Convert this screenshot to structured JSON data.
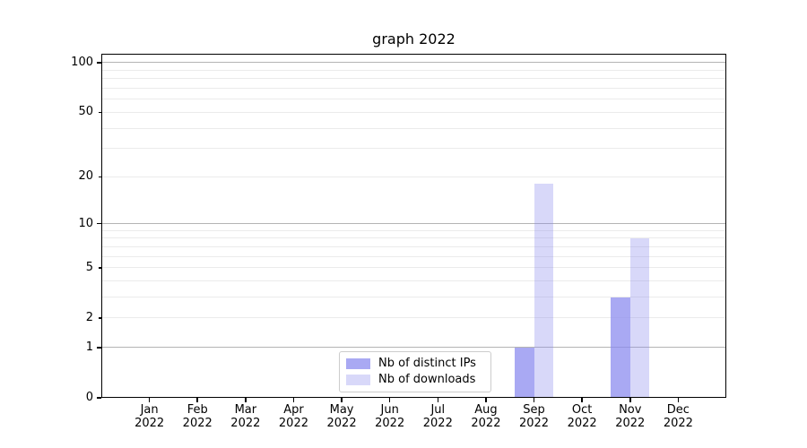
{
  "title": "graph 2022",
  "chart_data": {
    "type": "bar",
    "title": "graph 2022",
    "categories": [
      "Jan 2022",
      "Feb 2022",
      "Mar 2022",
      "Apr 2022",
      "May 2022",
      "Jun 2022",
      "Jul 2022",
      "Aug 2022",
      "Sep 2022",
      "Oct 2022",
      "Nov 2022",
      "Dec 2022"
    ],
    "series": [
      {
        "name": "Nb of distinct IPs",
        "fill": "rgba(136,136,238,0.72)",
        "hex_on_white": "#a9a9f1",
        "values": [
          0,
          0,
          0,
          0,
          0,
          0,
          0,
          0,
          1,
          0,
          3,
          0
        ]
      },
      {
        "name": "Nb of downloads",
        "fill": "rgba(136,136,238,0.33)",
        "hex_on_white": "#d8d8f9",
        "values": [
          0,
          0,
          0,
          0,
          0,
          0,
          0,
          0,
          18,
          0,
          8,
          0
        ]
      }
    ],
    "xlabel": "",
    "ylabel": "",
    "yscale": "log(value+1)",
    "ylim": [
      0,
      118
    ],
    "yticks": [
      0,
      1,
      2,
      5,
      10,
      20,
      50,
      100
    ],
    "yticks_decade": [
      1,
      10,
      100
    ],
    "yticks_minor_unlabeled": [
      3,
      4,
      6,
      7,
      8,
      9,
      30,
      40,
      60,
      70,
      80,
      90
    ],
    "grid": true,
    "legend_position": "lower center",
    "colors": {
      "grid_major": "#b4b4b4",
      "grid_minor": "#ebebeb",
      "spine": "#000000",
      "background": "#ffffff"
    }
  }
}
